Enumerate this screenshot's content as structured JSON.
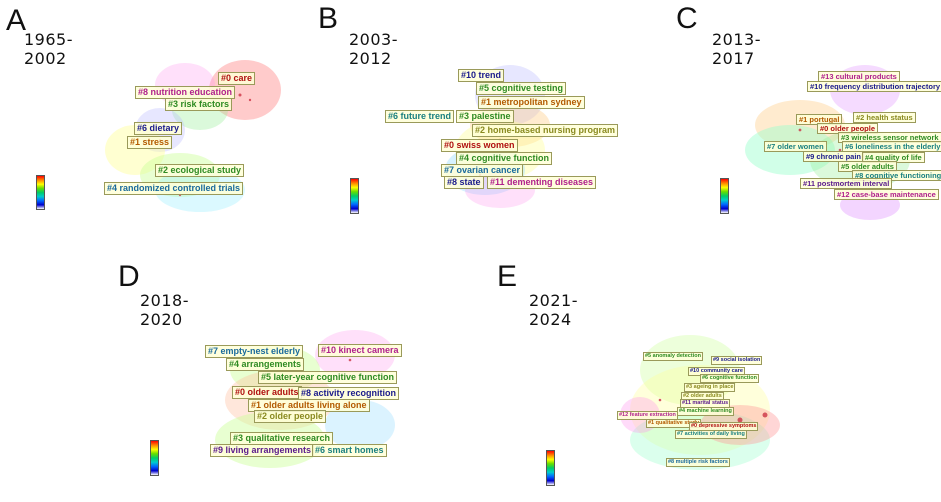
{
  "colors": {
    "label_dark_red": "#8b0000",
    "label_green": "#2e8b22",
    "label_dark_blue": "#1a1a8c",
    "label_magenta": "#b0208c",
    "label_teal": "#1a8080",
    "label_orange": "#b35a00",
    "label_purple": "#5a1a8c"
  },
  "panels": [
    {
      "letter": "A",
      "period": "1965-2002",
      "labels": [
        {
          "text": "#0 care",
          "color": "#b01010"
        },
        {
          "text": "#8 nutrition education",
          "color": "#b0208c"
        },
        {
          "text": "#3 risk factors",
          "color": "#2e8b22"
        },
        {
          "text": "#6 dietary",
          "color": "#1a1a8c"
        },
        {
          "text": "#1 stress",
          "color": "#b35a00"
        },
        {
          "text": "#2 ecological study",
          "color": "#2e8b22"
        },
        {
          "text": "#4 randomized controlled trials",
          "color": "#1a6a9c"
        }
      ]
    },
    {
      "letter": "B",
      "period": "2003-2012",
      "labels": [
        {
          "text": "#10 trend",
          "color": "#1a1a8c"
        },
        {
          "text": "#5 cognitive testing",
          "color": "#2e8b22"
        },
        {
          "text": "#1 metropolitan sydney",
          "color": "#b35a00"
        },
        {
          "text": "#6 future trend",
          "color": "#1a8080"
        },
        {
          "text": "#3 palestine",
          "color": "#2e8b22"
        },
        {
          "text": "#2 home-based nursing program",
          "color": "#8a8a20"
        },
        {
          "text": "#0 swiss women",
          "color": "#b01010"
        },
        {
          "text": "#4 cognitive function",
          "color": "#2e8b22"
        },
        {
          "text": "#7 ovarian cancer",
          "color": "#1a6a9c"
        },
        {
          "text": "#8 state",
          "color": "#1a1a8c"
        },
        {
          "text": "#11 dementing diseases",
          "color": "#b0208c"
        }
      ]
    },
    {
      "letter": "C",
      "period": "2013-2017",
      "labels": [
        {
          "text": "#13 cultural products",
          "color": "#b0208c"
        },
        {
          "text": "#10 frequency distribution trajectory",
          "color": "#1a1a8c"
        },
        {
          "text": "#1 portugal",
          "color": "#b35a00"
        },
        {
          "text": "#2 health status",
          "color": "#8a8a20"
        },
        {
          "text": "#0 older people",
          "color": "#b01010"
        },
        {
          "text": "#3 wireless sensor network",
          "color": "#2e8b22"
        },
        {
          "text": "#7 older women",
          "color": "#1a8080"
        },
        {
          "text": "#6 loneliness in the elderly",
          "color": "#1a8080"
        },
        {
          "text": "#9 chronic pain",
          "color": "#1a1a8c"
        },
        {
          "text": "#4 quality of life",
          "color": "#2e8b22"
        },
        {
          "text": "#5 older adults",
          "color": "#2e8b22"
        },
        {
          "text": "#8 cognitive functioning",
          "color": "#1a8080"
        },
        {
          "text": "#11 postmortem interval",
          "color": "#5a1a8c"
        },
        {
          "text": "#12 case-base maintenance",
          "color": "#b0208c"
        }
      ]
    },
    {
      "letter": "D",
      "period": "2018-2020",
      "labels": [
        {
          "text": "#7 empty-nest elderly",
          "color": "#1a6a9c"
        },
        {
          "text": "#10 kinect camera",
          "color": "#b0208c"
        },
        {
          "text": "#4 arrangements",
          "color": "#2e8b22"
        },
        {
          "text": "#5 later-year cognitive function",
          "color": "#2e8b22"
        },
        {
          "text": "#0 older adults",
          "color": "#b01010"
        },
        {
          "text": "#8 activity recognition",
          "color": "#1a1a8c"
        },
        {
          "text": "#1 older adults living alone",
          "color": "#b35a00"
        },
        {
          "text": "#2 older people",
          "color": "#8a8a20"
        },
        {
          "text": "#3 qualitative research",
          "color": "#2e8b22"
        },
        {
          "text": "#9 living arrangements",
          "color": "#5a1a8c"
        },
        {
          "text": "#6 smart homes",
          "color": "#1a8080"
        }
      ]
    },
    {
      "letter": "E",
      "period": "2021-2024",
      "labels": [
        {
          "text": "#5 anomaly detection",
          "color": "#2e8b22"
        },
        {
          "text": "#9 social isolation",
          "color": "#1a1a8c"
        },
        {
          "text": "#10 community care",
          "color": "#1a1a8c"
        },
        {
          "text": "#6 cognitive function",
          "color": "#2e8b22"
        },
        {
          "text": "#3 ageing in place",
          "color": "#8a8a20"
        },
        {
          "text": "#2 older adults",
          "color": "#8a8a20"
        },
        {
          "text": "#11 marital status",
          "color": "#5a1a8c"
        },
        {
          "text": "#4 machine learning",
          "color": "#2e8b22"
        },
        {
          "text": "#12 feature extraction",
          "color": "#b0208c"
        },
        {
          "text": "#1 qualitative study",
          "color": "#b35a00"
        },
        {
          "text": "#0 depressive symptoms",
          "color": "#b01010"
        },
        {
          "text": "#7 activities of daily living",
          "color": "#1a8080"
        },
        {
          "text": "#8 multiple risk factors",
          "color": "#1a6a9c"
        }
      ]
    }
  ]
}
